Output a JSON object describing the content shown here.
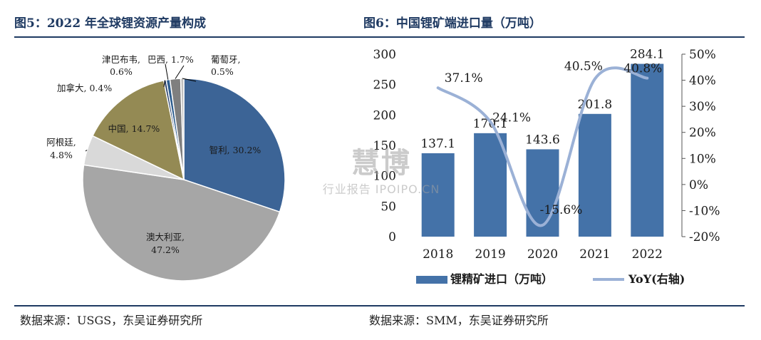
{
  "left": {
    "title": "图5：2022 年全球锂资源产量构成",
    "source": "数据来源：USGS，东吴证券研究所"
  },
  "right": {
    "title": "图6：中国锂矿端进口量（万吨）",
    "source": "数据来源：SMM，东吴证券研究所"
  },
  "watermark": {
    "main": "慧博",
    "sub": "行业报告 IPOIPO.CN"
  },
  "chart_data": [
    {
      "type": "pie",
      "title": "2022 年全球锂资源产量构成",
      "slices": [
        {
          "name": "智利",
          "value": 30.2,
          "label": "智利, 30.2%",
          "color": "#3c6496"
        },
        {
          "name": "澳大利亚",
          "value": 47.2,
          "label_lines": [
            "澳大利亚,",
            "47.2%"
          ],
          "color": "#a6a6a6"
        },
        {
          "name": "阿根廷",
          "value": 4.8,
          "label_lines": [
            "阿根廷,",
            "4.8%"
          ],
          "color": "#d9d9d9"
        },
        {
          "name": "中国",
          "value": 14.7,
          "label": "中国, 14.7%",
          "color": "#948a54"
        },
        {
          "name": "加拿大",
          "value": 0.4,
          "label": "加拿大, 0.4%",
          "color": "#1f3864"
        },
        {
          "name": "津巴布韦",
          "value": 0.6,
          "label_lines": [
            "津巴布韦,",
            "0.6%"
          ],
          "color": "#2e5d8e"
        },
        {
          "name": "巴西",
          "value": 1.7,
          "label": "巴西, 1.7%",
          "color": "#7f7f7f"
        },
        {
          "name": "葡萄牙",
          "value": 0.5,
          "label_lines": [
            "葡萄牙,",
            "0.5%"
          ],
          "color": "#bfbfbf"
        }
      ]
    },
    {
      "type": "bar",
      "title": "中国锂矿端进口量（万吨）",
      "categories": [
        "2018",
        "2019",
        "2020",
        "2021",
        "2022"
      ],
      "series": [
        {
          "name": "锂精矿进口（万吨）",
          "type": "bar",
          "axis": "left",
          "values": [
            137.1,
            170.1,
            143.6,
            201.8,
            284.1
          ],
          "color": "#4472a8"
        },
        {
          "name": "YoY(右轴)",
          "type": "line",
          "axis": "right",
          "values": [
            37.1,
            24.1,
            -15.6,
            40.5,
            40.8
          ],
          "labels": [
            "37.1%",
            "24.1%",
            "-15.6%",
            "40.5%",
            "40.8%"
          ],
          "color": "#9bb1d6"
        }
      ],
      "ylim": [
        0,
        300
      ],
      "yticks": [
        "0",
        "50",
        "100",
        "150",
        "200",
        "250",
        "300"
      ],
      "y2lim": [
        -20,
        50
      ],
      "y2ticks": [
        "-20%",
        "-10%",
        "0%",
        "10%",
        "20%",
        "30%",
        "40%",
        "50%"
      ],
      "legend_position": "bottom"
    }
  ]
}
